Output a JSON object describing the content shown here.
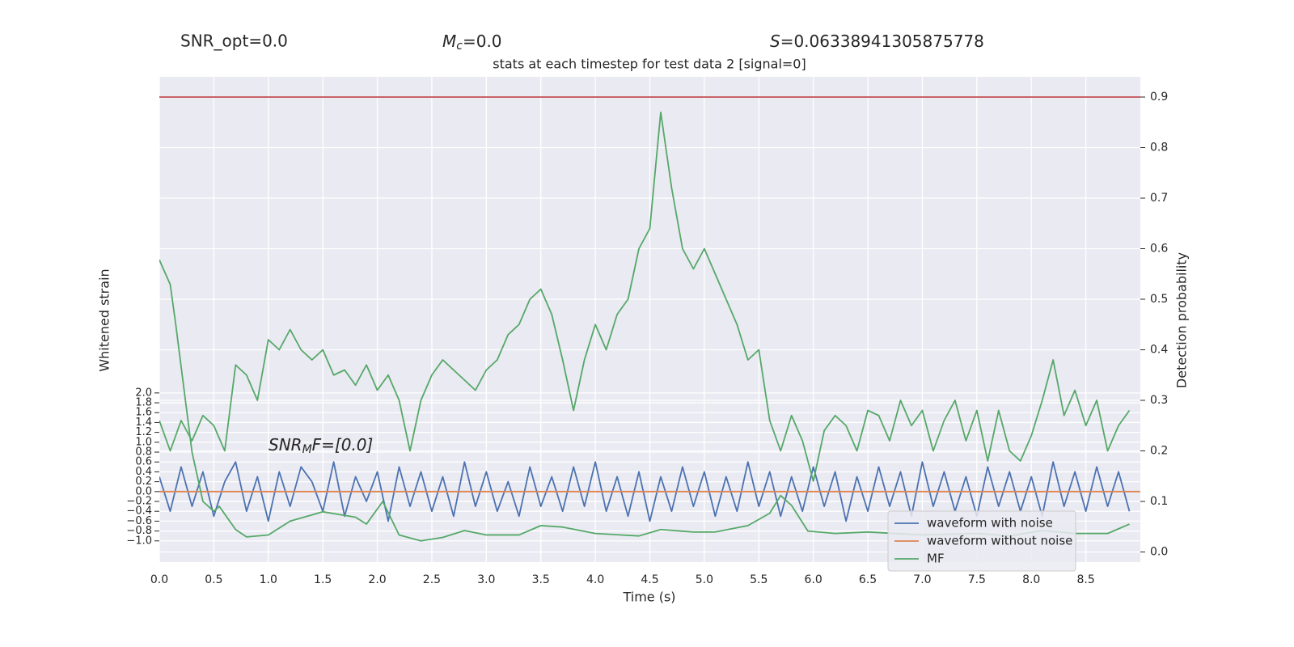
{
  "chart_data": {
    "type": "line",
    "header": {
      "snr_opt": "SNR_opt=0.0",
      "mc_symbol": "M",
      "mc_sub": "c",
      "mc_rest": "=0.0",
      "s_symbol": "S",
      "s_rest": "=0.06338941305875778"
    },
    "title": "stats at each timestep for test data 2 [signal=0]",
    "annotation": {
      "symbol": "SNR",
      "sub": "M",
      "rest": "F=[0.0]"
    },
    "xlabel": "Time (s)",
    "ylabel": "Whitened strain",
    "y2label": "Detection probability",
    "xlim": [
      0,
      9
    ],
    "ylim": [
      -1.43,
      8.41
    ],
    "y2lim": [
      -0.02,
      0.94
    ],
    "xticks": [
      {
        "value": 0,
        "label": "0.0"
      },
      0.5,
      {
        "value": 1,
        "label": "1.0"
      },
      1.5,
      {
        "value": 2,
        "label": "2.0"
      },
      2.5,
      {
        "value": 3,
        "label": "3.0"
      },
      3.5,
      {
        "value": 4,
        "label": "4.0"
      },
      4.5,
      {
        "value": 5,
        "label": "5.0"
      },
      5.5,
      {
        "value": 6,
        "label": "6.0"
      },
      6.5,
      {
        "value": 7,
        "label": "7.0"
      },
      7.5,
      {
        "value": 8,
        "label": "8.0"
      },
      8.5
    ],
    "yticks": [
      {
        "value": -1,
        "label": "−1.0"
      },
      {
        "value": -0.8,
        "label": "−0.8"
      },
      {
        "value": -0.6,
        "label": "−0.6"
      },
      {
        "value": -0.4,
        "label": "−0.4"
      },
      {
        "value": -0.2,
        "label": "−0.2"
      },
      {
        "value": 0,
        "label": "0.0"
      },
      0.2,
      0.4,
      0.6,
      0.8,
      {
        "value": 1,
        "label": "1.0"
      },
      1.2,
      1.4,
      1.6,
      1.8,
      {
        "value": 2,
        "label": "2.0"
      }
    ],
    "y2ticks": [
      {
        "value": 0,
        "label": "0.0"
      },
      0.1,
      0.2,
      0.3,
      0.4,
      0.5,
      0.6,
      0.7,
      0.8,
      0.9
    ],
    "grid": true,
    "legend": "lower right",
    "x": [
      0,
      0.1,
      0.2,
      0.3,
      0.4,
      0.5,
      0.6,
      0.7,
      0.8,
      0.9,
      1,
      1.1,
      1.2,
      1.3,
      1.4,
      1.5,
      1.6,
      1.7,
      1.8,
      1.9,
      2,
      2.1,
      2.2,
      2.3,
      2.4,
      2.5,
      2.6,
      2.7,
      2.8,
      2.9,
      3,
      3.1,
      3.2,
      3.3,
      3.4,
      3.5,
      3.6,
      3.7,
      3.8,
      3.9,
      4,
      4.1,
      4.2,
      4.3,
      4.4,
      4.5,
      4.6,
      4.7,
      4.8,
      4.9,
      5,
      5.1,
      5.2,
      5.3,
      5.4,
      5.5,
      5.6,
      5.7,
      5.8,
      5.9,
      6,
      6.1,
      6.2,
      6.3,
      6.4,
      6.5,
      6.6,
      6.7,
      6.8,
      6.9,
      7,
      7.1,
      7.2,
      7.3,
      7.4,
      7.5,
      7.6,
      7.7,
      7.8,
      7.9,
      8,
      8.1,
      8.2,
      8.3,
      8.4,
      8.5,
      8.6,
      8.7,
      8.8,
      8.9
    ],
    "series": [
      {
        "name": "waveform with noise",
        "color": "#4c72b0",
        "axis": "y",
        "values": [
          0.3,
          -0.4,
          0.5,
          -0.3,
          0.4,
          -0.5,
          0.2,
          0.6,
          -0.4,
          0.3,
          -0.6,
          0.4,
          -0.3,
          0.5,
          0.2,
          -0.4,
          0.6,
          -0.5,
          0.3,
          -0.2,
          0.4,
          -0.6,
          0.5,
          -0.3,
          0.4,
          -0.4,
          0.3,
          -0.5,
          0.6,
          -0.3,
          0.4,
          -0.4,
          0.2,
          -0.5,
          0.5,
          -0.3,
          0.3,
          -0.4,
          0.5,
          -0.3,
          0.6,
          -0.4,
          0.3,
          -0.5,
          0.4,
          -0.6,
          0.3,
          -0.4,
          0.5,
          -0.3,
          0.4,
          -0.5,
          0.3,
          -0.4,
          0.6,
          -0.3,
          0.4,
          -0.5,
          0.3,
          -0.4,
          0.5,
          -0.3,
          0.4,
          -0.6,
          0.3,
          -0.4,
          0.5,
          -0.3,
          0.4,
          -0.5,
          0.6,
          -0.3,
          0.4,
          -0.4,
          0.3,
          -0.5,
          0.5,
          -0.3,
          0.4,
          -0.4,
          0.3,
          -0.5,
          0.6,
          -0.3,
          0.4,
          -0.4,
          0.5,
          -0.3,
          0.4,
          -0.4
        ]
      },
      {
        "name": "waveform without noise",
        "color": "#dd8452",
        "axis": "y",
        "x": [
          0,
          9
        ],
        "values": [
          0,
          0
        ]
      },
      {
        "name": "MF",
        "color": "#55a868",
        "axis": "y",
        "x": [
          0,
          0.1,
          0.15,
          0.3,
          0.4,
          0.5,
          0.55,
          0.7,
          0.8,
          1.0,
          1.2,
          1.5,
          1.8,
          1.9,
          2.05,
          2.2,
          2.4,
          2.6,
          2.8,
          3.0,
          3.3,
          3.5,
          3.7,
          4.0,
          4.4,
          4.6,
          4.9,
          5.1,
          5.4,
          5.6,
          5.7,
          5.8,
          5.95,
          6.2,
          6.5,
          7.0,
          7.5,
          7.8,
          8.1,
          8.4,
          8.7,
          8.9
        ],
        "values": [
          4.7,
          4.2,
          3.4,
          0.8,
          -0.2,
          -0.4,
          -0.3,
          -0.77,
          -0.92,
          -0.88,
          -0.6,
          -0.41,
          -0.52,
          -0.66,
          -0.2,
          -0.88,
          -1.0,
          -0.93,
          -0.79,
          -0.88,
          -0.88,
          -0.69,
          -0.72,
          -0.85,
          -0.9,
          -0.77,
          -0.82,
          -0.82,
          -0.69,
          -0.44,
          -0.08,
          -0.28,
          -0.8,
          -0.85,
          -0.82,
          -0.88,
          -0.85,
          -0.9,
          -0.79,
          -0.85,
          -0.85,
          -0.66
        ]
      },
      {
        "color": "#55a868",
        "axis": "y2",
        "values": [
          0.26,
          0.2,
          0.26,
          0.22,
          0.27,
          0.25,
          0.2,
          0.37,
          0.35,
          0.3,
          0.42,
          0.4,
          0.44,
          0.4,
          0.38,
          0.4,
          0.35,
          0.36,
          0.33,
          0.37,
          0.32,
          0.35,
          0.3,
          0.2,
          0.3,
          0.35,
          0.38,
          0.36,
          0.34,
          0.32,
          0.36,
          0.38,
          0.43,
          0.45,
          0.5,
          0.52,
          0.47,
          0.38,
          0.28,
          0.38,
          0.45,
          0.4,
          0.47,
          0.5,
          0.6,
          0.64,
          0.87,
          0.72,
          0.6,
          0.56,
          0.6,
          0.55,
          0.5,
          0.45,
          0.38,
          0.4,
          0.26,
          0.2,
          0.27,
          0.22,
          0.14,
          0.24,
          0.27,
          0.25,
          0.2,
          0.28,
          0.27,
          0.22,
          0.3,
          0.25,
          0.28,
          0.2,
          0.26,
          0.3,
          0.22,
          0.28,
          0.18,
          0.28,
          0.2,
          0.18,
          0.23,
          0.3,
          0.38,
          0.27,
          0.32,
          0.25,
          0.3,
          0.2,
          0.25,
          0.28
        ]
      },
      {
        "color": "#c44e52",
        "axis": "y2",
        "x": [
          0,
          9
        ],
        "values": [
          0.9,
          0.9
        ]
      }
    ]
  }
}
